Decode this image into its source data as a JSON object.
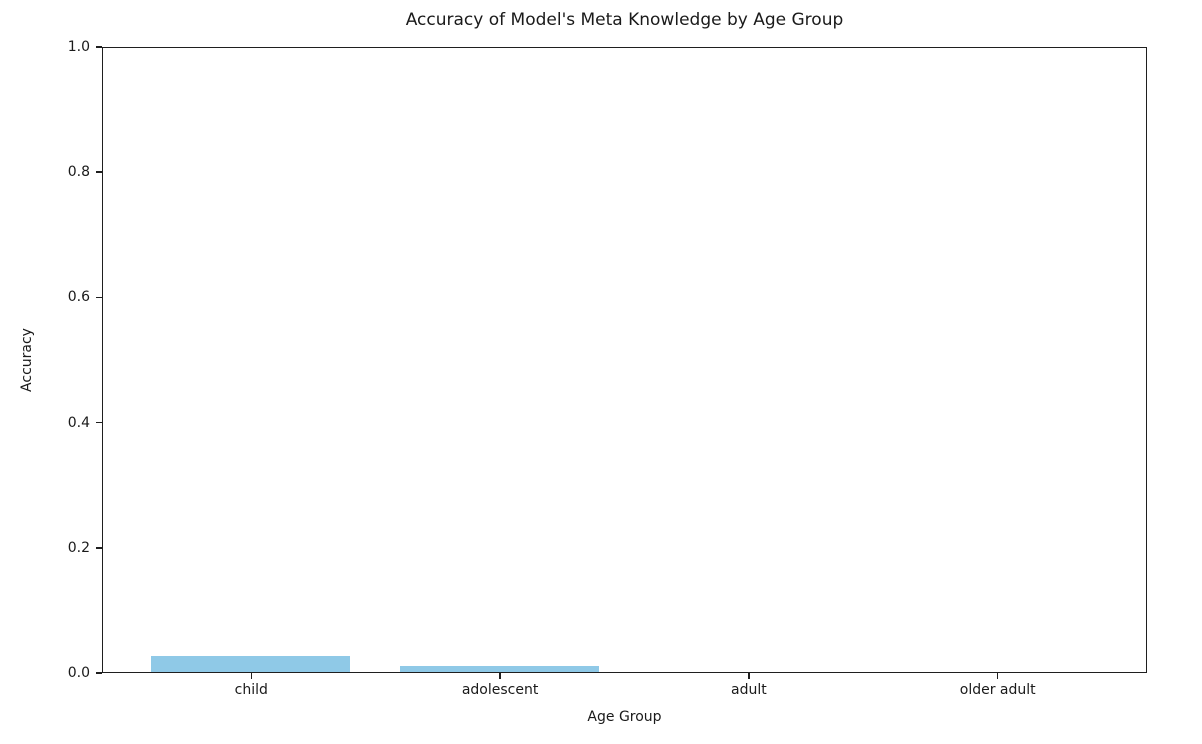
{
  "chart_data": {
    "type": "bar",
    "title": "Accuracy of Model's Meta Knowledge by Age Group",
    "xlabel": "Age Group",
    "ylabel": "Accuracy",
    "categories": [
      "child",
      "adolescent",
      "adult",
      "older adult"
    ],
    "values": [
      0.026,
      0.01,
      0.0,
      0.0
    ],
    "ylim": [
      0.0,
      1.0
    ],
    "ytick_labels": [
      "0.0",
      "0.2",
      "0.4",
      "0.6",
      "0.8",
      "1.0"
    ],
    "ytick_values": [
      0.0,
      0.2,
      0.4,
      0.6,
      0.8,
      1.0
    ],
    "bar_color": "#8FC9E7",
    "grid": false,
    "legend": null
  }
}
